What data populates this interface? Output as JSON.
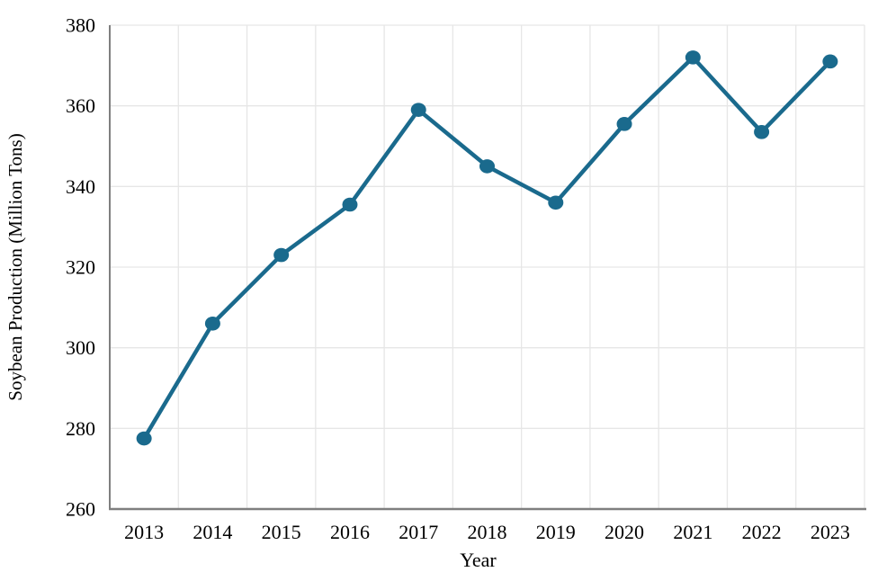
{
  "chart_data": {
    "type": "line",
    "title": "",
    "xlabel": "Year",
    "ylabel": "Soybean Production (Million Tons)",
    "categories": [
      "2013",
      "2014",
      "2015",
      "2016",
      "2017",
      "2018",
      "2019",
      "2020",
      "2021",
      "2022",
      "2023"
    ],
    "series": [
      {
        "name": "Soybean Production",
        "values": [
          277.5,
          306,
          323,
          335.5,
          359,
          345,
          336,
          355.5,
          372,
          353.5,
          371
        ]
      }
    ],
    "ylim": [
      260,
      380
    ],
    "yticks": [
      260,
      280,
      300,
      320,
      340,
      360,
      380
    ],
    "grid": true,
    "legend_position": "none",
    "colors": {
      "line": "#1a6a8d",
      "marker": "#1a6a8d",
      "gridline": "#e6e6e6",
      "spine": "#7f7f7f",
      "tick_text": "#000000",
      "axis_title_text": "#000000",
      "background": "#ffffff"
    }
  }
}
